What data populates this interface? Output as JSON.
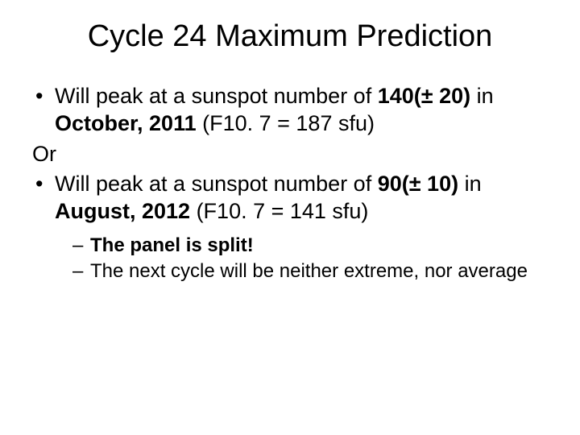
{
  "title": "Cycle 24 Maximum Prediction",
  "title_fontsize": 38,
  "body_fontsize": 27,
  "sub_fontsize": 24,
  "line_height_body": 1.25,
  "line_height_sub": 1.28,
  "text_color": "#000000",
  "background_color": "#ffffff",
  "bullet1": {
    "pre": "Will peak at a sunspot number of ",
    "bold1": "140(± 20)",
    "mid": " in ",
    "bold2": "October, 2011",
    "post": "  (F10. 7 = 187 sfu)"
  },
  "or_text": "Or",
  "bullet2": {
    "pre": "Will peak at a sunspot number of ",
    "bold1": "90(± 10)",
    "mid": " in ",
    "bold2": "August, 2012",
    "post": " (F10. 7 = 141 sfu)"
  },
  "sub1_bold": "The panel is split!",
  "sub2": "The next cycle will be neither extreme, nor average"
}
